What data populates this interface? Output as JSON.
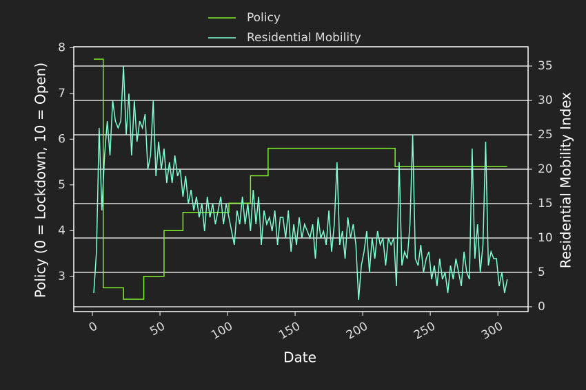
{
  "chart_data": {
    "type": "line",
    "xlabel": "Date",
    "ylabel": "Policy (0 = Lockdown, 10 = Open)",
    "y2label": "Residential Mobility Index",
    "xlim": [
      -13.8,
      322.4
    ],
    "xticks": [
      0,
      50,
      100,
      150,
      200,
      250,
      300
    ],
    "ylim": [
      2.23,
      8.02
    ],
    "yticks": [
      3,
      4,
      5,
      6,
      7,
      8
    ],
    "y2lim": [
      -0.7,
      37.8
    ],
    "y2ticks": [
      0,
      5,
      10,
      15,
      20,
      25,
      30,
      35
    ],
    "grid": "y2",
    "legend": "upper center",
    "series": [
      {
        "name": "Policy",
        "color": "#7ff02a",
        "step": "post",
        "x": [
          1,
          8,
          23,
          38,
          53,
          67,
          101,
          117,
          130,
          224,
          307
        ],
        "values": [
          7.75,
          2.75,
          2.5,
          3.0,
          4.0,
          4.4,
          4.6,
          5.2,
          5.8,
          5.4,
          5.4
        ]
      },
      {
        "name": "Residential Mobility",
        "color": "#7fffd4",
        "axis": "y2",
        "x": [
          1,
          3,
          5,
          7,
          9,
          11,
          13,
          15,
          17,
          19,
          21,
          23,
          25,
          27,
          29,
          31,
          33,
          35,
          37,
          39,
          41,
          43,
          45,
          47,
          49,
          51,
          53,
          55,
          57,
          59,
          61,
          63,
          65,
          67,
          69,
          71,
          73,
          75,
          77,
          79,
          81,
          83,
          85,
          87,
          89,
          91,
          93,
          95,
          97,
          99,
          101,
          103,
          105,
          107,
          109,
          111,
          113,
          115,
          117,
          119,
          121,
          123,
          125,
          127,
          129,
          131,
          133,
          135,
          137,
          139,
          141,
          143,
          145,
          147,
          149,
          151,
          153,
          155,
          157,
          159,
          161,
          163,
          165,
          167,
          169,
          171,
          173,
          175,
          177,
          179,
          181,
          183,
          185,
          187,
          189,
          191,
          193,
          195,
          197,
          199,
          201,
          203,
          205,
          207,
          209,
          211,
          213,
          215,
          217,
          219,
          221,
          223,
          225,
          227,
          229,
          231,
          233,
          235,
          237,
          239,
          241,
          243,
          245,
          247,
          249,
          251,
          253,
          255,
          257,
          259,
          261,
          263,
          265,
          267,
          269,
          271,
          273,
          275,
          277,
          279,
          281,
          283,
          285,
          287,
          289,
          291,
          293,
          295,
          297,
          299,
          301,
          303,
          305,
          307
        ],
        "values": [
          2,
          8,
          26,
          14,
          22,
          27,
          22,
          30,
          27,
          26,
          27,
          35,
          25,
          31,
          22,
          30,
          24,
          27,
          26,
          28,
          20,
          22,
          30,
          19,
          24,
          20,
          23,
          18,
          21,
          18,
          22,
          19,
          20,
          16,
          19,
          15,
          17,
          14,
          16,
          13,
          15,
          11,
          16,
          13,
          15,
          12,
          14,
          16,
          12,
          15,
          13,
          11,
          9,
          14,
          12,
          16,
          12,
          15,
          11,
          17,
          12,
          16,
          9,
          14,
          12,
          13,
          11,
          14,
          9,
          13,
          13,
          10,
          14,
          8,
          12,
          9,
          13,
          10,
          12,
          11,
          10,
          12,
          7,
          13,
          10,
          11,
          9,
          14,
          8,
          12,
          21,
          9,
          11,
          7,
          13,
          10,
          12,
          9,
          1,
          6,
          8,
          11,
          5,
          10,
          7,
          11,
          9,
          10,
          6,
          10,
          9,
          10,
          3,
          21,
          6,
          8,
          7,
          12,
          25,
          7,
          6,
          9,
          5,
          7,
          8,
          4,
          6,
          3,
          7,
          4,
          5,
          2,
          6,
          4,
          7,
          5,
          3,
          8,
          5,
          4,
          23,
          7,
          12,
          5,
          9,
          24,
          6,
          8,
          7,
          7,
          3,
          5,
          2,
          4
        ]
      }
    ]
  }
}
